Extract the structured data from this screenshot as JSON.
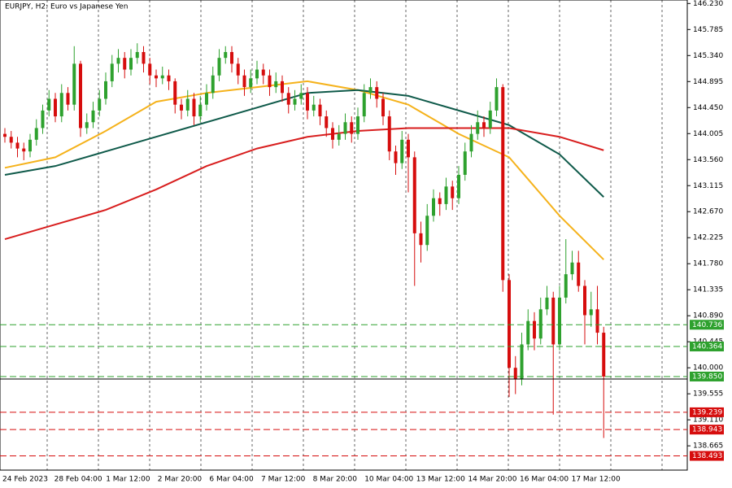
{
  "chart_data": {
    "type": "candlestick",
    "title": "EURJPY, H2:  Euro vs Japanese Yen",
    "up_color": "#2ea12e",
    "down_color": "#d60d0d",
    "ylim": [
      138.25,
      146.29
    ],
    "yticks": [
      {
        "value": 146.23,
        "label": "146.230"
      },
      145.785,
      {
        "value": 145.34,
        "label": "145.340"
      },
      144.895,
      {
        "value": 144.45,
        "label": "144.450"
      },
      144.005,
      {
        "value": 143.56,
        "label": "143.560"
      },
      143.115,
      {
        "value": 142.67,
        "label": "142.670"
      },
      142.225,
      {
        "value": 141.78,
        "label": "141.780"
      },
      141.335,
      {
        "value": 140.89,
        "label": "140.890"
      },
      140.445,
      {
        "value": 140,
        "label": "140.000"
      },
      139.555,
      {
        "value": 139.11,
        "label": "139.110"
      },
      138.665
    ],
    "x_labels": [
      "24 Feb 2023",
      "28 Feb 04:00",
      "1 Mar 12:00",
      "2 Mar 20:00",
      "6 Mar 04:00",
      "7 Mar 12:00",
      "8 Mar 20:00",
      "10 Mar 04:00",
      "13 Mar 12:00",
      "14 Mar 20:00",
      "16 Mar 04:00",
      "17 Mar 12:00"
    ],
    "grid": true,
    "candles": {
      "open": [
        144.0,
        143.95,
        143.85,
        143.75,
        143.7,
        143.9,
        144.1,
        144.4,
        144.6,
        144.3,
        144.7,
        144.5,
        145.2,
        144.1,
        144.2,
        144.4,
        144.6,
        144.9,
        145.2,
        145.3,
        145.1,
        145.3,
        145.4,
        145.2,
        145.0,
        144.95,
        145.0,
        144.9,
        144.5,
        144.4,
        144.6,
        144.3,
        144.5,
        144.7,
        145.0,
        145.3,
        145.4,
        145.2,
        145.0,
        144.8,
        144.95,
        145.1,
        145.0,
        144.8,
        144.9,
        144.7,
        144.5,
        144.6,
        144.7,
        144.4,
        144.5,
        144.3,
        144.1,
        143.9,
        144.0,
        144.2,
        144.0,
        144.3,
        144.7,
        144.8,
        144.6,
        144.3,
        143.7,
        143.5,
        143.9,
        143.6,
        142.3,
        142.1,
        142.6,
        142.9,
        142.8,
        143.1,
        142.9,
        143.3,
        143.7,
        144.0,
        144.2,
        144.1,
        144.4,
        144.8,
        141.5,
        140.0,
        139.8,
        140.4,
        140.8,
        140.5,
        141.0,
        141.2,
        140.4,
        141.2,
        141.6,
        141.8,
        141.4,
        140.9,
        141.0,
        140.6
      ],
      "high": [
        144.1,
        144.05,
        143.95,
        143.85,
        144.0,
        144.25,
        144.5,
        144.75,
        144.7,
        144.85,
        144.8,
        145.5,
        145.25,
        144.35,
        144.55,
        144.75,
        145.05,
        145.35,
        145.45,
        145.4,
        145.45,
        145.55,
        145.5,
        145.3,
        145.1,
        145.15,
        145.1,
        144.95,
        144.6,
        144.75,
        144.7,
        144.65,
        144.85,
        145.15,
        145.45,
        145.5,
        145.5,
        145.3,
        145.1,
        145.1,
        145.25,
        145.2,
        145.1,
        145.05,
        145.0,
        144.8,
        144.75,
        144.85,
        144.8,
        144.65,
        144.6,
        144.4,
        144.2,
        144.15,
        144.35,
        144.3,
        144.45,
        144.85,
        144.95,
        144.9,
        144.7,
        144.4,
        143.8,
        144.05,
        144.0,
        143.7,
        142.5,
        142.8,
        143.05,
        143.0,
        143.25,
        143.2,
        143.45,
        143.85,
        144.15,
        144.4,
        144.3,
        144.55,
        144.95,
        144.85,
        141.6,
        140.2,
        140.6,
        141.0,
        140.95,
        141.2,
        141.4,
        141.3,
        141.4,
        142.2,
        142.0,
        142.0,
        141.5,
        141.3,
        141.4,
        140.7
      ],
      "low": [
        143.85,
        143.75,
        143.6,
        143.55,
        143.6,
        143.8,
        144.0,
        144.3,
        144.2,
        144.2,
        144.4,
        144.4,
        143.95,
        144.0,
        144.1,
        144.3,
        144.5,
        144.8,
        145.05,
        144.95,
        145.0,
        145.2,
        145.05,
        144.85,
        144.8,
        144.85,
        144.75,
        144.35,
        144.25,
        144.3,
        144.15,
        144.2,
        144.4,
        144.6,
        144.9,
        145.2,
        145.05,
        144.85,
        144.65,
        144.7,
        144.85,
        144.85,
        144.65,
        144.7,
        144.55,
        144.35,
        144.4,
        144.5,
        144.25,
        144.3,
        144.15,
        143.95,
        143.75,
        143.8,
        143.9,
        143.85,
        143.9,
        144.2,
        144.6,
        144.45,
        144.15,
        143.55,
        143.3,
        143.4,
        143.0,
        141.4,
        141.8,
        142.0,
        142.5,
        142.6,
        142.7,
        142.7,
        142.8,
        143.2,
        143.6,
        143.9,
        143.95,
        144.0,
        144.3,
        141.3,
        139.5,
        139.55,
        139.7,
        140.3,
        140.3,
        140.4,
        140.9,
        139.2,
        140.3,
        141.1,
        141.5,
        141.3,
        140.4,
        140.7,
        140.4,
        138.8
      ],
      "close": [
        143.95,
        143.85,
        143.75,
        143.7,
        143.9,
        144.1,
        144.4,
        144.6,
        144.3,
        144.7,
        144.5,
        145.2,
        144.1,
        144.2,
        144.4,
        144.6,
        144.9,
        145.2,
        145.3,
        145.1,
        145.3,
        145.4,
        145.2,
        145.0,
        144.95,
        145.0,
        144.9,
        144.5,
        144.4,
        144.6,
        144.3,
        144.5,
        144.7,
        145.0,
        145.3,
        145.4,
        145.2,
        145.0,
        144.8,
        144.95,
        145.1,
        145.0,
        144.8,
        144.9,
        144.7,
        144.5,
        144.6,
        144.7,
        144.4,
        144.5,
        144.3,
        144.1,
        143.9,
        144.0,
        144.2,
        144.0,
        144.3,
        144.7,
        144.8,
        144.6,
        144.3,
        143.7,
        143.5,
        143.9,
        143.6,
        142.3,
        142.1,
        142.6,
        142.9,
        142.8,
        143.1,
        142.9,
        143.3,
        143.7,
        144.0,
        144.2,
        144.1,
        144.4,
        144.8,
        141.5,
        140.0,
        139.8,
        140.4,
        140.8,
        140.5,
        141.0,
        141.2,
        140.4,
        141.2,
        141.6,
        141.8,
        141.4,
        140.9,
        141.0,
        140.6,
        139.85
      ]
    },
    "series": [
      {
        "color": "#f5b21b",
        "x": [
          0,
          8,
          16,
          24,
          32,
          40,
          48,
          56,
          64,
          72,
          80,
          88,
          95
        ],
        "values": [
          143.42,
          143.6,
          144.05,
          144.55,
          144.7,
          144.8,
          144.9,
          144.75,
          144.5,
          144.0,
          143.6,
          142.6,
          141.85
        ]
      },
      {
        "color": "#0f5a4a",
        "x": [
          0,
          8,
          16,
          24,
          32,
          40,
          48,
          56,
          64,
          72,
          80,
          88,
          95
        ],
        "values": [
          143.3,
          143.45,
          143.7,
          143.95,
          144.2,
          144.45,
          144.7,
          144.75,
          144.65,
          144.4,
          144.15,
          143.65,
          142.92
        ]
      },
      {
        "color": "#d81e1e",
        "x": [
          0,
          8,
          16,
          24,
          32,
          40,
          48,
          56,
          64,
          72,
          80,
          88,
          95
        ],
        "values": [
          142.2,
          142.45,
          142.7,
          143.05,
          143.45,
          143.75,
          143.95,
          144.05,
          144.1,
          144.1,
          144.1,
          143.95,
          143.72
        ]
      }
    ],
    "levels": [
      {
        "price": 140.736,
        "color": "#2ea12e"
      },
      {
        "price": 140.364,
        "color": "#2ea12e"
      },
      {
        "price": {
          "value": 139.85,
          "label": "139.850"
        },
        "color": "#2ea12e"
      },
      {
        "price": 139.239,
        "color": "#d60d0d"
      },
      {
        "price": 138.943,
        "color": "#d60d0d"
      },
      {
        "price": 138.493,
        "color": "#d60d0d"
      }
    ],
    "current_price": {
      "value": 139.85,
      "label": "139.850"
    }
  }
}
